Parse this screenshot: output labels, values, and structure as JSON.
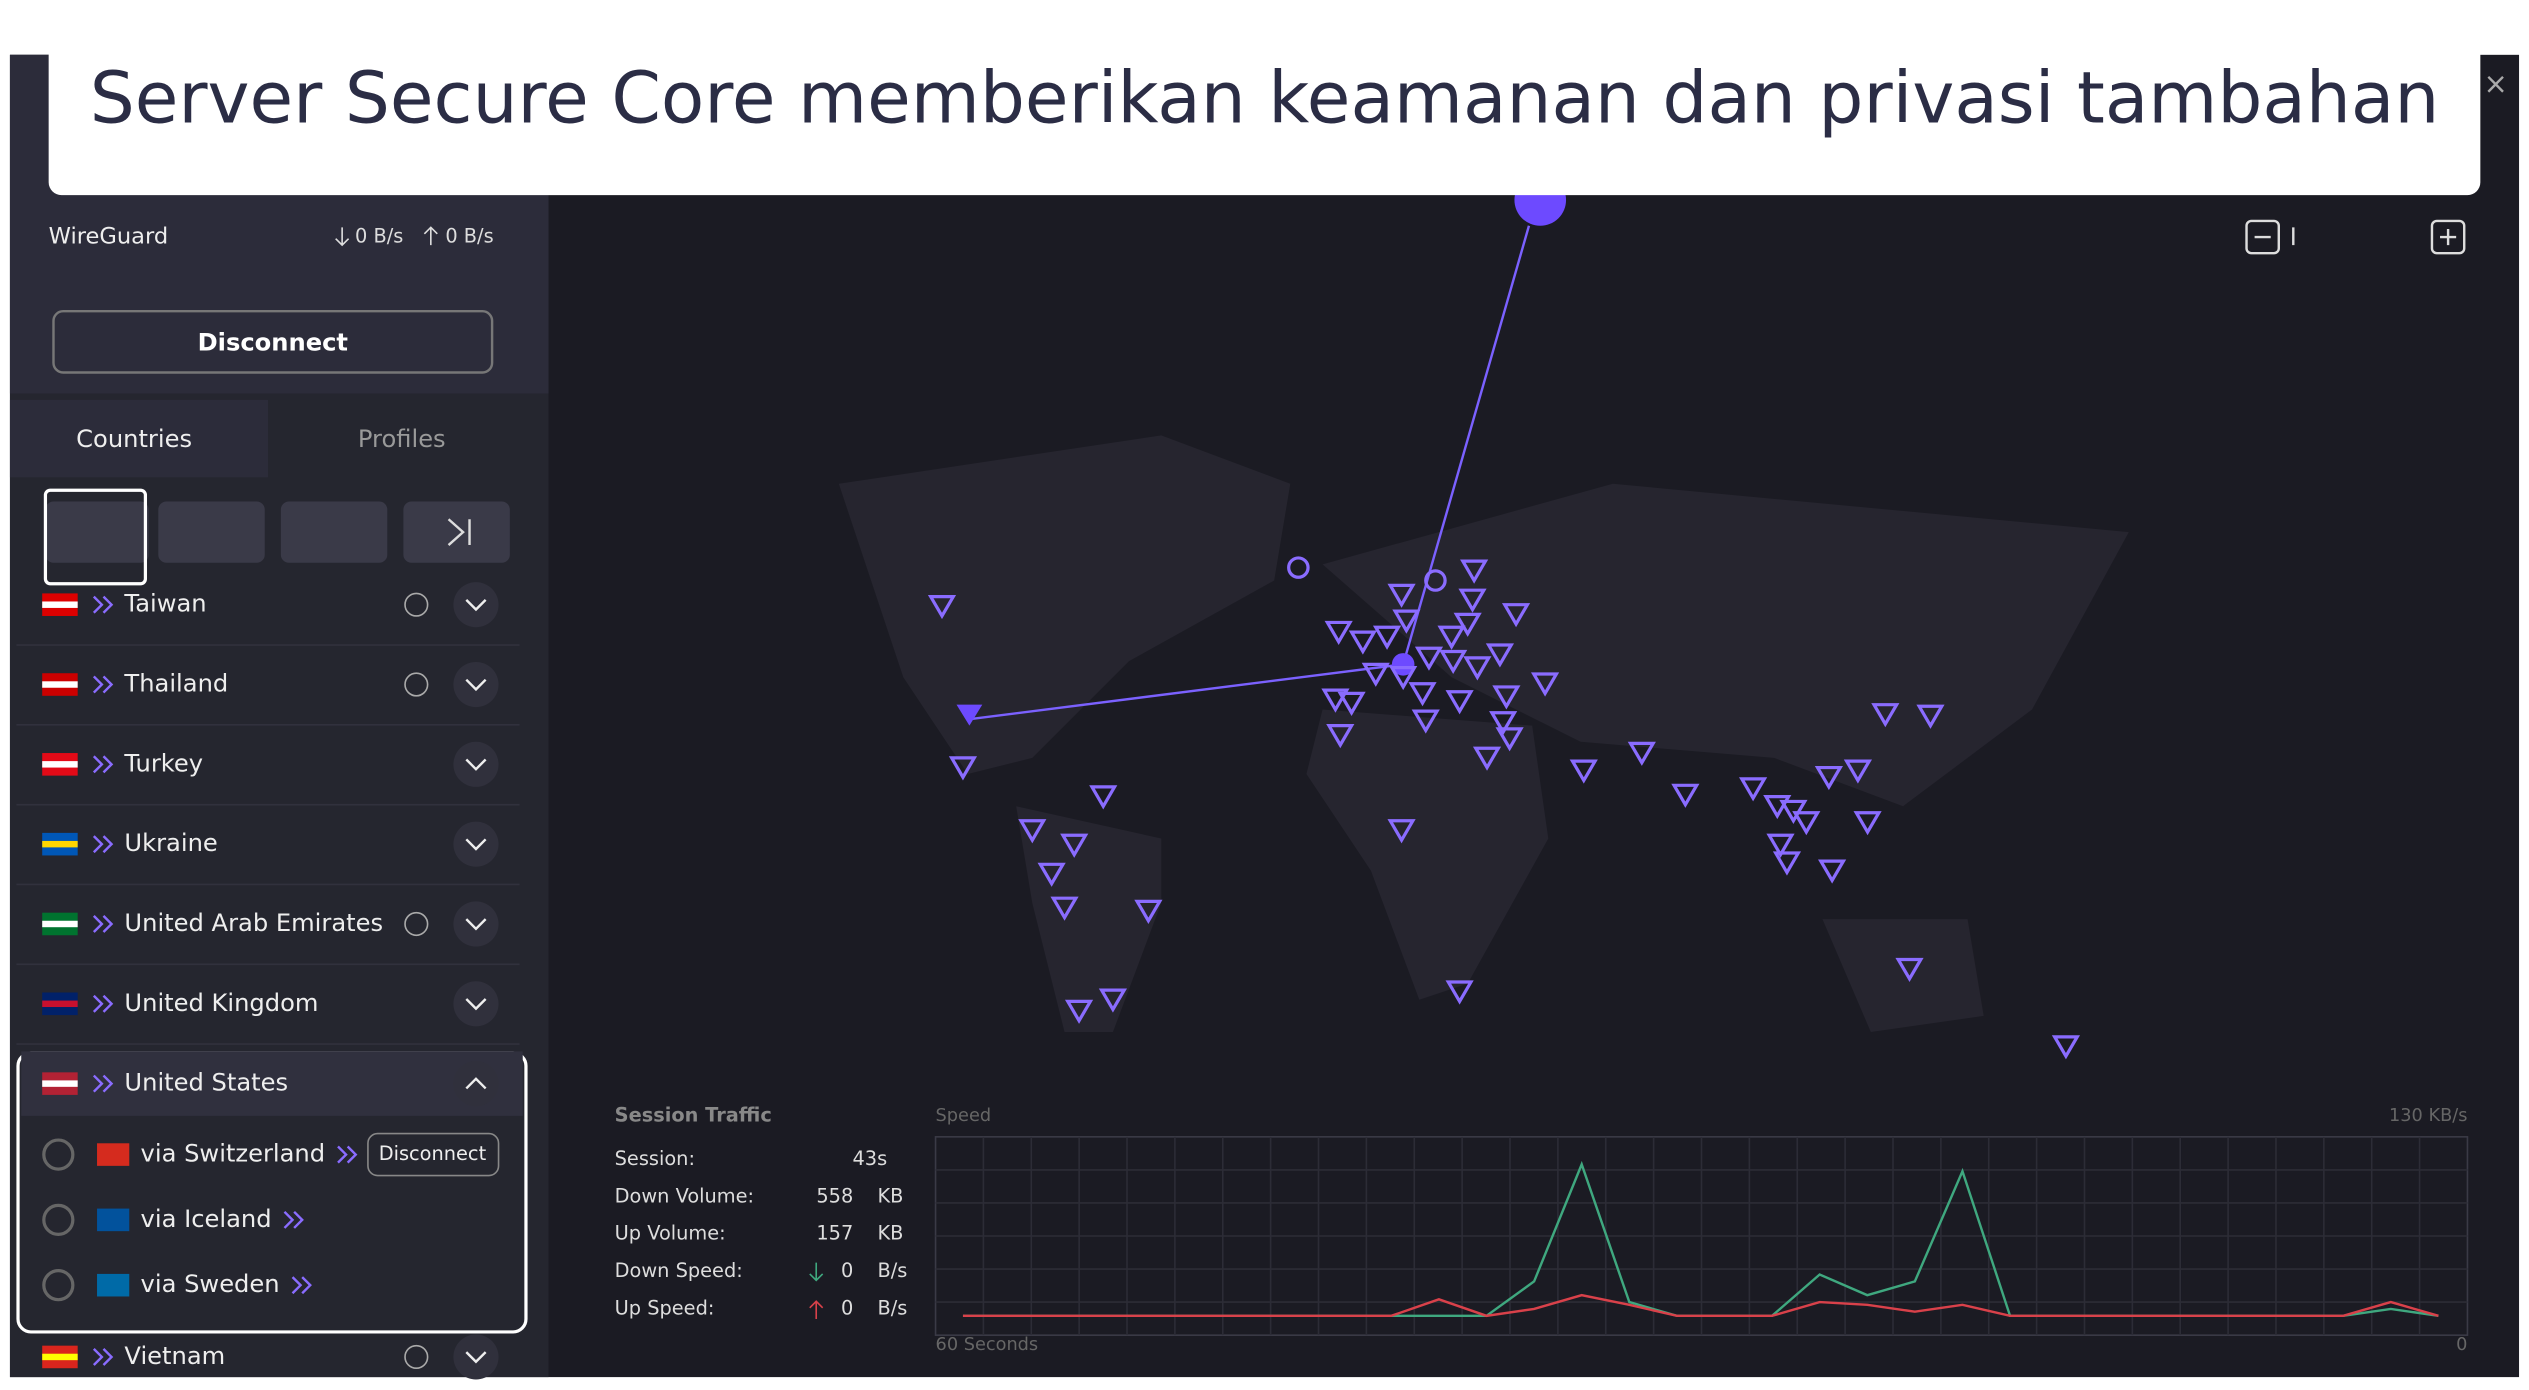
{
  "banner": {
    "title": "Server Secure Core memberikan keamanan dan privasi tambahan"
  },
  "connection": {
    "protocol": "WireGuard",
    "download": "0 B/s",
    "upload": "0 B/s",
    "button": "Disconnect"
  },
  "tabs": [
    "Countries",
    "Profiles"
  ],
  "countries": [
    {
      "name": "Taiwan",
      "globe": true
    },
    {
      "name": "Thailand",
      "globe": true
    },
    {
      "name": "Turkey",
      "globe": false
    },
    {
      "name": "Ukraine",
      "globe": false
    },
    {
      "name": "United Arab Emirates",
      "globe": true
    },
    {
      "name": "United Kingdom",
      "globe": false
    },
    {
      "name": "United States",
      "globe": false,
      "servers": [
        {
          "name": "via Switzerland",
          "button": "Disconnect"
        },
        {
          "name": "via Iceland"
        },
        {
          "name": "via Sweden"
        }
      ]
    },
    {
      "name": "Vietnam",
      "globe": true
    }
  ],
  "session_traffic": {
    "title": "Session Traffic",
    "rows": [
      {
        "label": "Session:",
        "value": "43s"
      },
      {
        "label": "Down Volume:",
        "value": "558",
        "unit": "KB"
      },
      {
        "label": "Up Volume:",
        "value": "157",
        "unit": "KB"
      },
      {
        "label": "Down Speed:",
        "value": "0",
        "unit": "B/s"
      },
      {
        "label": "Up Speed:",
        "value": "0",
        "unit": "B/s"
      }
    ],
    "graph": {
      "type": "line",
      "title": "Speed",
      "ylim": [
        0,
        130
      ],
      "top_label": "130 KB/s",
      "x_labels": [
        "60 Seconds",
        "0"
      ],
      "series": [
        {
          "color": "#3fa87f",
          "values": [
            0,
            0,
            0,
            0,
            0,
            0,
            0,
            0,
            0,
            0,
            0,
            0,
            25,
            110,
            10,
            0,
            0,
            0,
            30,
            15,
            25,
            105,
            0,
            0,
            0,
            0,
            0,
            0,
            0,
            0,
            5,
            0
          ]
        },
        {
          "color": "#d9414a",
          "values": [
            0,
            0,
            0,
            0,
            0,
            0,
            0,
            0,
            0,
            0,
            12,
            0,
            5,
            15,
            8,
            0,
            0,
            0,
            10,
            8,
            3,
            8,
            0,
            0,
            0,
            0,
            0,
            0,
            0,
            0,
            10,
            0
          ]
        }
      ]
    }
  }
}
